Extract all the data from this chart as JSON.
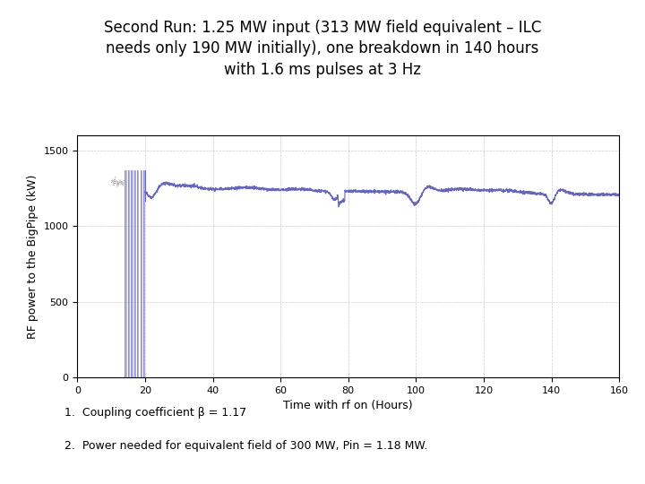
{
  "title": "Second Run: 1.25 MW input (313 MW field equivalent – ILC\nneeds only 190 MW initially), one breakdown in 140 hours\nwith 1.6 ms pulses at 3 Hz",
  "xlabel": "Time with rf on (Hours)",
  "ylabel": "RF power to the BigPipe (kW)",
  "xlim": [
    0,
    160
  ],
  "ylim": [
    0,
    1600
  ],
  "xticks": [
    0,
    20,
    40,
    60,
    80,
    100,
    120,
    140,
    160
  ],
  "yticks": [
    0,
    500,
    1000,
    1500
  ],
  "note1": "1.  Coupling coefficient β = 1.17",
  "note2": "2.  Power needed for equivalent field of 300 MW, Pin = 1.18 MW.",
  "background_color": "#ffffff",
  "line_color": "#6666bb",
  "fill_color": "#aaaadd",
  "grid_color": "#aaaaaa",
  "title_fontsize": 12,
  "label_fontsize": 9,
  "tick_fontsize": 8,
  "note_fontsize": 9,
  "steady_state_value": 1250,
  "initial_peak": 1370,
  "conditioning_start": 14,
  "conditioning_end": 20,
  "num_spikes": 7
}
